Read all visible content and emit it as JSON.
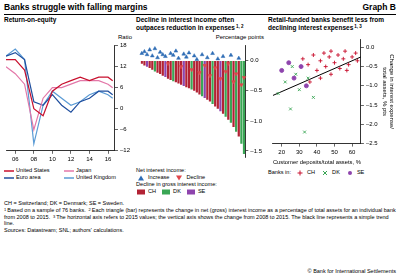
{
  "title": "Banks struggle with falling margins",
  "graph_label": "Graph B",
  "chart_data": [
    {
      "type": "line",
      "title": "Return-on-equity",
      "ylabel": "Ratio",
      "x": [
        2005,
        2006,
        2007,
        2008,
        2009,
        2010,
        2011,
        2012,
        2013,
        2014,
        2015,
        2016,
        2016.5
      ],
      "xlim": [
        2005,
        2016.75
      ],
      "xticks": [
        {
          "value": 2006,
          "label": "06"
        },
        {
          "value": 2008,
          "label": "08"
        },
        {
          "value": 2010,
          "label": "10"
        },
        {
          "value": 2012,
          "label": "12"
        },
        {
          "value": 2014,
          "label": "14"
        },
        {
          "value": 2016,
          "label": "16"
        }
      ],
      "ylim": [
        -12,
        18
      ],
      "yticks": [
        {
          "value": -12,
          "label": "–12"
        },
        {
          "value": -6,
          "label": "–6"
        },
        0,
        6,
        12,
        18
      ],
      "grid": false,
      "legend": "bottom",
      "series": [
        {
          "name": "United States",
          "color": "#c8102e",
          "line_style": "solid",
          "values": [
            14,
            14,
            11,
            0,
            -2,
            5,
            7,
            8,
            9,
            8,
            9,
            9,
            8
          ]
        },
        {
          "name": "Japan",
          "color": "#e377a8",
          "line_style": "solid",
          "values": [
            12,
            10,
            7,
            -6,
            3,
            6,
            6,
            7,
            8,
            8,
            8,
            7,
            6
          ]
        },
        {
          "name": "Euro area",
          "color": "#1f4e9e",
          "line_style": "solid",
          "values": [
            15,
            16,
            14,
            2,
            1,
            4,
            1,
            -1,
            2,
            3,
            5,
            5,
            4
          ]
        },
        {
          "name": "United Kingdom",
          "color": "#5b9bd5",
          "line_style": "solid",
          "values": [
            15,
            17,
            14,
            -10,
            1,
            5,
            3,
            1,
            2,
            4,
            5,
            4,
            3
          ]
        }
      ]
    },
    {
      "type": "bar",
      "title": "Decline in interest income often outpaces reduction in expenses",
      "title_note": "1, 2",
      "ylabel": "Percentage points",
      "categories": [
        null,
        null,
        null,
        null,
        null,
        null,
        null,
        null,
        null,
        null,
        null,
        null,
        null,
        null,
        null,
        null,
        null,
        null,
        null,
        null,
        null,
        null,
        null,
        null,
        null,
        null,
        null,
        null,
        null,
        null,
        null,
        null,
        null,
        null,
        null,
        null,
        null,
        null,
        null,
        null
      ],
      "ylim": [
        -1.6,
        0.25
      ],
      "yticks": [
        {
          "value": -1.5,
          "label": "–1.5"
        },
        {
          "value": -1,
          "label": "–1.0"
        },
        {
          "value": -0.5,
          "label": "–0.5"
        },
        {
          "value": 0,
          "label": "0.0"
        }
      ],
      "grid": false,
      "legend": "bottom",
      "tick_labels": "y",
      "series": [
        {
          "name": "Increase",
          "group": "Net interest income:",
          "type": "line",
          "line_style": "none",
          "marker": "triangle",
          "color": "#2f6db5",
          "values": [
            0.12,
            0.15,
            0.1,
            0.18,
            0.08,
            0.2,
            0.05,
            0.14,
            0.1,
            0.07,
            null,
            0.12,
            0.09,
            0.16,
            0.04,
            null,
            0.11,
            0.06,
            0.13,
            null,
            0.08,
            0.02,
            null,
            0.1,
            null,
            0.05,
            null,
            0.12,
            null,
            0.03,
            null,
            0.07,
            null,
            null,
            0.09,
            null,
            null,
            0.04,
            null,
            null
          ]
        },
        {
          "name": "Decline",
          "group": "Net interest income:",
          "type": "line",
          "line_style": "none",
          "marker": "triangle-down",
          "color": "#e0464b",
          "values": [
            null,
            null,
            null,
            null,
            null,
            null,
            null,
            null,
            null,
            null,
            -0.05,
            null,
            null,
            null,
            null,
            -0.1,
            null,
            null,
            null,
            -0.15,
            null,
            null,
            -0.2,
            null,
            -0.08,
            null,
            -0.25,
            null,
            -0.12,
            null,
            -0.3,
            null,
            -0.18,
            -0.05,
            null,
            -0.35,
            -0.22,
            null,
            -0.4,
            -0.28
          ]
        },
        {
          "name": "CH",
          "group": "Decline in gross interest income:",
          "type": "bar",
          "color": "#b22234",
          "values": [
            -0.05,
            -0.08,
            null,
            -0.12,
            -0.15,
            null,
            -0.2,
            -0.22,
            -0.25,
            null,
            -0.3,
            -0.32,
            null,
            -0.36,
            -0.38,
            -0.4,
            null,
            -0.44,
            -0.46,
            null,
            -0.5,
            -0.53,
            -0.56,
            null,
            null,
            -0.65,
            -0.68,
            null,
            -0.76,
            -0.8,
            null,
            -0.88,
            null,
            -0.98,
            null,
            -1.1,
            null,
            -1.26,
            null,
            null
          ]
        },
        {
          "name": "DK",
          "group": "Decline in gross interest income:",
          "type": "bar",
          "color": "#3aa655",
          "values": [
            null,
            null,
            null,
            null,
            null,
            -0.18,
            null,
            null,
            null,
            null,
            null,
            null,
            -0.34,
            null,
            null,
            null,
            null,
            null,
            null,
            -0.48,
            null,
            null,
            null,
            -0.59,
            null,
            null,
            null,
            -0.72,
            null,
            null,
            null,
            null,
            -0.93,
            null,
            -1.03,
            null,
            -1.18,
            null,
            -1.38,
            -1.55
          ]
        },
        {
          "name": "SE",
          "group": "Decline in gross interest income:",
          "type": "bar",
          "color": "#8e44ad",
          "values": [
            null,
            null,
            -0.1,
            null,
            null,
            null,
            null,
            null,
            null,
            -0.27,
            null,
            null,
            null,
            null,
            null,
            null,
            -0.42,
            null,
            null,
            null,
            null,
            null,
            null,
            null,
            -0.62,
            null,
            null,
            null,
            null,
            null,
            -0.84,
            null,
            null,
            null,
            null,
            null,
            null,
            null,
            null,
            null
          ]
        }
      ]
    },
    {
      "type": "scatter",
      "title": "Retail-funded banks benefit less from declining interest expenses",
      "title_note": "1, 3",
      "xlabel": "Customer deposits/total assets, %",
      "ylabel": "Change in interest expense/total assets, % pts",
      "xlim": [
        15,
        65
      ],
      "xticks": [
        20,
        30,
        40,
        50,
        60
      ],
      "ylim": [
        -2.5,
        0.2
      ],
      "yticks": [
        {
          "value": -2.5,
          "label": "–2.5"
        },
        {
          "value": -2,
          "label": "–2.0"
        },
        {
          "value": -1.5,
          "label": "–1.5"
        },
        {
          "value": -1,
          "label": "–1.0"
        },
        {
          "value": -0.5,
          "label": "–0.5"
        },
        {
          "value": 0,
          "label": "0.0"
        }
      ],
      "grid": false,
      "legend": "bottom",
      "legend_title": "Banks in:",
      "series": [
        {
          "name": "CH",
          "color": "#c8102e",
          "marker": "cross",
          "x": [
            32,
            35,
            38,
            40,
            42,
            44,
            45,
            47,
            48,
            50,
            52,
            53,
            55,
            56,
            58,
            60,
            62,
            63,
            48,
            42,
            36,
            57
          ],
          "values": [
            -0.3,
            -0.45,
            -0.2,
            -0.6,
            -0.35,
            -0.15,
            -0.5,
            -0.25,
            -0.7,
            -0.4,
            -0.2,
            -0.55,
            -0.3,
            -0.1,
            -0.45,
            -0.25,
            -0.15,
            -0.35,
            -0.1,
            -0.8,
            -0.9,
            -0.6
          ]
        },
        {
          "name": "DK",
          "color": "#3aa655",
          "marker": "x",
          "x": [
            18,
            22,
            25,
            28,
            30,
            33,
            35,
            38,
            26
          ],
          "values": [
            -1.2,
            -0.9,
            -1.6,
            -0.7,
            -1.1,
            -2.2,
            -0.8,
            -1.3,
            -0.5
          ]
        },
        {
          "name": "SE",
          "color": "#8e44ad",
          "marker": "circle",
          "x": [
            20,
            24,
            27,
            31,
            34
          ],
          "values": [
            -0.6,
            -0.4,
            -0.8,
            -0.5,
            -1.0
          ]
        }
      ],
      "trend": {
        "color": "#000000",
        "x": [
          15,
          65
        ],
        "values": [
          -1.25,
          -0.25
        ]
      }
    }
  ],
  "abbreviations": "CH = Switzerland; DK = Denmark; SE = Sweden.",
  "footnotes": [
    {
      "mark": "1",
      "text": "Based on a sample of 76 banks."
    },
    {
      "mark": "2",
      "text": "Each triangle (bar) represents the change in net (gross) interest income as a percentage of total assets for an individual bank from 2008 to 2015."
    },
    {
      "mark": "3",
      "text": "The horizontal axis refers to 2015 values; the vertical axis shows the change from 2008 to 2015. The black line represents a simple trend line."
    }
  ],
  "sources": "Sources: Datastream; SNL; authors' calculations.",
  "copyright": "© Bank for International Settlements"
}
